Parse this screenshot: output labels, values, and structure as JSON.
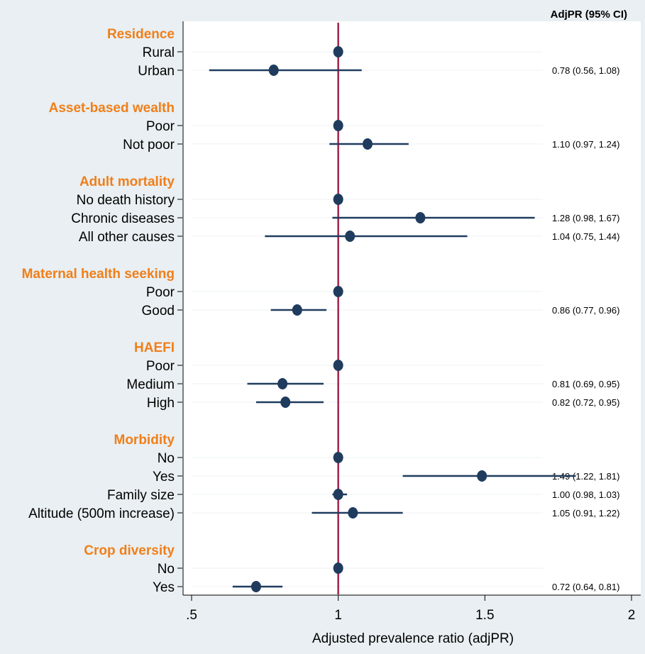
{
  "chart_data": {
    "type": "forest",
    "xlabel": "Adjusted prevalence ratio (adjPR)",
    "column_header": "AdjPR (95% CI)",
    "reference_line": 1,
    "xlim": [
      0.5,
      2
    ],
    "xticks": [
      {
        "value": 0.5,
        "label": ".5"
      },
      {
        "value": 1,
        "label": "1"
      },
      {
        "value": 1.5,
        "label": "1.5"
      },
      {
        "value": 2,
        "label": "2"
      }
    ],
    "colors": {
      "marker": "#1f3c5e",
      "reference": "#a5214a",
      "group": "#f07f1a",
      "label": "#000000",
      "background": "#e9eff2",
      "plot": "#ffffff"
    },
    "rows": [
      {
        "kind": "group",
        "label": "Residence"
      },
      {
        "kind": "item",
        "label": "Rural",
        "est": 1.0
      },
      {
        "kind": "item",
        "label": "Urban",
        "est": 0.78,
        "lo": 0.56,
        "hi": 1.08,
        "text": "0.78 (0.56, 1.08)"
      },
      {
        "kind": "gap"
      },
      {
        "kind": "group",
        "label": "Asset-based wealth"
      },
      {
        "kind": "item",
        "label": "Poor",
        "est": 1.0
      },
      {
        "kind": "item",
        "label": "Not poor",
        "est": 1.1,
        "lo": 0.97,
        "hi": 1.24,
        "text": "1.10 (0.97, 1.24)"
      },
      {
        "kind": "gap"
      },
      {
        "kind": "group",
        "label": "Adult mortality"
      },
      {
        "kind": "item",
        "label": "No death history",
        "est": 1.0
      },
      {
        "kind": "item",
        "label": "Chronic diseases",
        "est": 1.28,
        "lo": 0.98,
        "hi": 1.67,
        "text": "1.28 (0.98, 1.67)"
      },
      {
        "kind": "item",
        "label": "All other causes",
        "est": 1.04,
        "lo": 0.75,
        "hi": 1.44,
        "text": "1.04 (0.75, 1.44)"
      },
      {
        "kind": "gap"
      },
      {
        "kind": "group",
        "label": "Maternal health seeking"
      },
      {
        "kind": "item",
        "label": "Poor",
        "est": 1.0
      },
      {
        "kind": "item",
        "label": "Good",
        "est": 0.86,
        "lo": 0.77,
        "hi": 0.96,
        "text": "0.86 (0.77, 0.96)"
      },
      {
        "kind": "gap"
      },
      {
        "kind": "group",
        "label": "HAEFI"
      },
      {
        "kind": "item",
        "label": "Poor",
        "est": 1.0
      },
      {
        "kind": "item",
        "label": "Medium",
        "est": 0.81,
        "lo": 0.69,
        "hi": 0.95,
        "text": "0.81 (0.69, 0.95)"
      },
      {
        "kind": "item",
        "label": "High",
        "est": 0.82,
        "lo": 0.72,
        "hi": 0.95,
        "text": "0.82 (0.72, 0.95)"
      },
      {
        "kind": "gap"
      },
      {
        "kind": "group",
        "label": "Morbidity"
      },
      {
        "kind": "item",
        "label": "No",
        "est": 1.0
      },
      {
        "kind": "item",
        "label": "Yes",
        "est": 1.49,
        "lo": 1.22,
        "hi": 1.81,
        "text": "1.49 (1.22, 1.81)"
      },
      {
        "kind": "item",
        "label": "Family size",
        "est": 1.0,
        "lo": 0.98,
        "hi": 1.03,
        "text": "1.00 (0.98, 1.03)"
      },
      {
        "kind": "item",
        "label": "Altitude (500m increase)",
        "est": 1.05,
        "lo": 0.91,
        "hi": 1.22,
        "text": "1.05 (0.91, 1.22)"
      },
      {
        "kind": "gap"
      },
      {
        "kind": "group",
        "label": "Crop diversity"
      },
      {
        "kind": "item",
        "label": "No",
        "est": 1.0
      },
      {
        "kind": "item",
        "label": "Yes",
        "est": 0.72,
        "lo": 0.64,
        "hi": 0.81,
        "text": "0.72 (0.64, 0.81)"
      }
    ]
  }
}
